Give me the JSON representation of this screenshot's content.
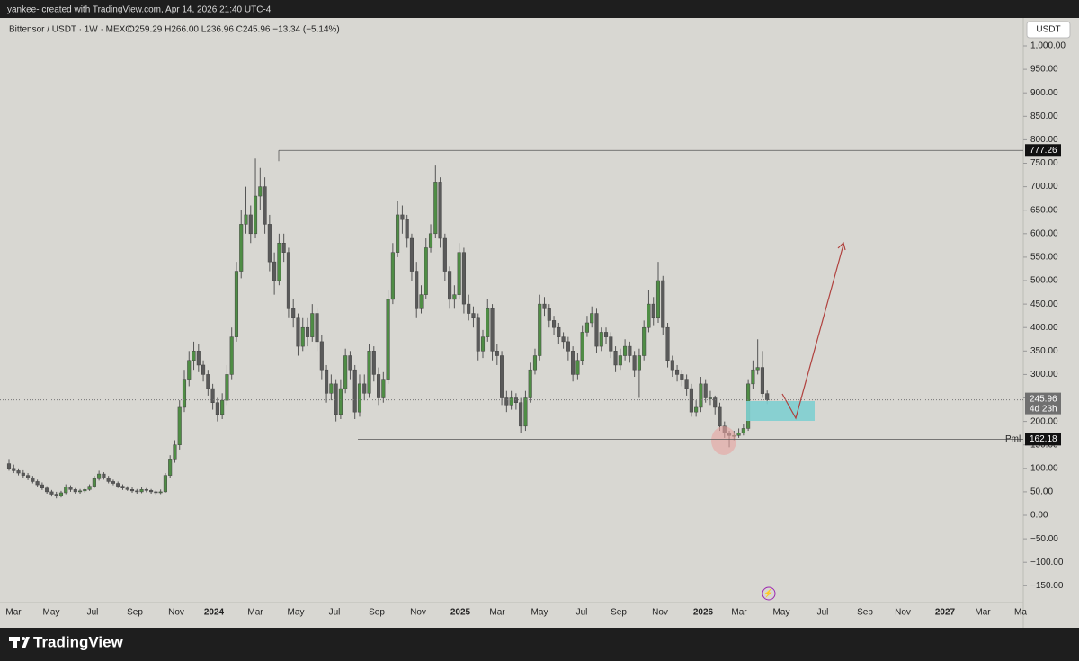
{
  "header": "yankee- created with TradingView.com, Apr 14, 2026 21:40 UTC-4",
  "footer": "TradingView",
  "chart_data": {
    "type": "candlestick",
    "title": "Bittensor / USDT · 1W · MEXC",
    "ohlc_label": "O259.29 H266.00 L236.96 C245.96 −13.34 (−5.14%)",
    "currency": "USDT",
    "up_color": "#4f8d45",
    "down_color": "#5a5a5a",
    "ylim": [
      -185.8,
      1059.4
    ],
    "yticks": [
      {
        "value": 1000,
        "label": "1,000.00"
      },
      {
        "value": 950,
        "label": "950.00"
      },
      {
        "value": 900,
        "label": "900.00"
      },
      {
        "value": 850,
        "label": "850.00"
      },
      {
        "value": 800,
        "label": "800.00"
      },
      {
        "value": 750,
        "label": "750.00"
      },
      {
        "value": 700,
        "label": "700.00"
      },
      {
        "value": 650,
        "label": "650.00"
      },
      {
        "value": 600,
        "label": "600.00"
      },
      {
        "value": 550,
        "label": "550.00"
      },
      {
        "value": 500,
        "label": "500.00"
      },
      {
        "value": 450,
        "label": "450.00"
      },
      {
        "value": 400,
        "label": "400.00"
      },
      {
        "value": 350,
        "label": "350.00"
      },
      {
        "value": 300,
        "label": "300.00"
      },
      {
        "value": 250,
        "label": "250.00"
      },
      {
        "value": 200,
        "label": "200.00"
      },
      {
        "value": 150,
        "label": "150.00"
      },
      {
        "value": 100,
        "label": "100.00"
      },
      {
        "value": 50,
        "label": "50.00"
      },
      {
        "value": 0,
        "label": "0.00"
      },
      {
        "value": -50,
        "label": "−50.00"
      },
      {
        "value": -100,
        "label": "−100.00"
      },
      {
        "value": -150,
        "label": "−150.00"
      }
    ],
    "xticks": [
      "Mar",
      "May",
      "Jul",
      "Sep",
      "Nov",
      "2024",
      "Mar",
      "May",
      "Jul",
      "Sep",
      "Nov",
      "2025",
      "Mar",
      "May",
      "Jul",
      "Sep",
      "Nov",
      "2026",
      "Mar",
      "May",
      "Jul",
      "Sep",
      "Nov",
      "2027",
      "Mar",
      "Ma"
    ],
    "levels": [
      {
        "value": 777.26,
        "label": "777.26"
      },
      {
        "value": 162.18,
        "label": "162.18",
        "name": "Pml"
      }
    ],
    "last_price": {
      "value": 245.96,
      "label": "245.96",
      "countdown": "4d 23h"
    },
    "candles": [
      [
        110,
        120,
        95,
        100
      ],
      [
        100,
        108,
        90,
        95
      ],
      [
        95,
        100,
        85,
        90
      ],
      [
        90,
        96,
        80,
        85
      ],
      [
        85,
        90,
        75,
        80
      ],
      [
        80,
        84,
        68,
        72
      ],
      [
        72,
        76,
        60,
        65
      ],
      [
        65,
        70,
        54,
        58
      ],
      [
        58,
        62,
        46,
        50
      ],
      [
        50,
        54,
        40,
        45
      ],
      [
        45,
        50,
        36,
        42
      ],
      [
        42,
        52,
        38,
        48
      ],
      [
        48,
        66,
        45,
        60
      ],
      [
        60,
        64,
        50,
        55
      ],
      [
        55,
        58,
        46,
        50
      ],
      [
        50,
        56,
        46,
        52
      ],
      [
        52,
        58,
        48,
        55
      ],
      [
        55,
        66,
        52,
        62
      ],
      [
        62,
        84,
        58,
        78
      ],
      [
        78,
        95,
        74,
        88
      ],
      [
        88,
        92,
        76,
        80
      ],
      [
        80,
        84,
        68,
        72
      ],
      [
        72,
        76,
        64,
        68
      ],
      [
        68,
        72,
        58,
        62
      ],
      [
        62,
        66,
        54,
        58
      ],
      [
        58,
        62,
        52,
        55
      ],
      [
        55,
        60,
        48,
        52
      ],
      [
        52,
        56,
        46,
        50
      ],
      [
        50,
        60,
        47,
        55
      ],
      [
        55,
        58,
        49,
        53
      ],
      [
        53,
        56,
        46,
        50
      ],
      [
        50,
        53,
        44,
        48
      ],
      [
        48,
        55,
        45,
        50
      ],
      [
        50,
        90,
        48,
        85
      ],
      [
        85,
        128,
        80,
        120
      ],
      [
        120,
        160,
        112,
        150
      ],
      [
        150,
        245,
        140,
        230
      ],
      [
        230,
        310,
        220,
        290
      ],
      [
        290,
        350,
        275,
        330
      ],
      [
        330,
        370,
        310,
        350
      ],
      [
        350,
        365,
        305,
        320
      ],
      [
        320,
        330,
        285,
        300
      ],
      [
        300,
        310,
        255,
        270
      ],
      [
        270,
        280,
        225,
        240
      ],
      [
        240,
        250,
        200,
        215
      ],
      [
        215,
        260,
        205,
        245
      ],
      [
        245,
        320,
        235,
        300
      ],
      [
        300,
        400,
        290,
        380
      ],
      [
        380,
        540,
        370,
        520
      ],
      [
        520,
        650,
        505,
        620
      ],
      [
        620,
        700,
        600,
        640
      ],
      [
        640,
        660,
        580,
        600
      ],
      [
        600,
        760,
        590,
        680
      ],
      [
        680,
        740,
        650,
        700
      ],
      [
        700,
        720,
        600,
        620
      ],
      [
        620,
        640,
        520,
        540
      ],
      [
        540,
        560,
        470,
        500
      ],
      [
        500,
        600,
        490,
        580
      ],
      [
        580,
        600,
        540,
        560
      ],
      [
        560,
        570,
        420,
        440
      ],
      [
        440,
        460,
        400,
        420
      ],
      [
        420,
        430,
        340,
        360
      ],
      [
        360,
        420,
        350,
        400
      ],
      [
        400,
        420,
        360,
        380
      ],
      [
        380,
        450,
        370,
        430
      ],
      [
        430,
        440,
        350,
        370
      ],
      [
        370,
        385,
        290,
        310
      ],
      [
        310,
        320,
        240,
        260
      ],
      [
        260,
        300,
        245,
        280
      ],
      [
        280,
        290,
        200,
        215
      ],
      [
        215,
        290,
        205,
        270
      ],
      [
        270,
        355,
        260,
        340
      ],
      [
        340,
        350,
        290,
        310
      ],
      [
        310,
        320,
        205,
        220
      ],
      [
        220,
        300,
        210,
        280
      ],
      [
        280,
        300,
        245,
        260
      ],
      [
        260,
        365,
        250,
        350
      ],
      [
        350,
        360,
        285,
        300
      ],
      [
        300,
        315,
        235,
        250
      ],
      [
        250,
        305,
        240,
        290
      ],
      [
        290,
        480,
        280,
        460
      ],
      [
        460,
        580,
        450,
        560
      ],
      [
        560,
        670,
        550,
        640
      ],
      [
        640,
        660,
        600,
        630
      ],
      [
        630,
        640,
        570,
        590
      ],
      [
        590,
        600,
        500,
        520
      ],
      [
        520,
        540,
        420,
        440
      ],
      [
        440,
        490,
        430,
        470
      ],
      [
        470,
        590,
        460,
        570
      ],
      [
        570,
        620,
        560,
        600
      ],
      [
        600,
        745,
        590,
        710
      ],
      [
        710,
        720,
        570,
        590
      ],
      [
        590,
        600,
        500,
        520
      ],
      [
        520,
        530,
        440,
        460
      ],
      [
        460,
        490,
        440,
        470
      ],
      [
        470,
        580,
        460,
        560
      ],
      [
        560,
        570,
        430,
        450
      ],
      [
        450,
        470,
        415,
        430
      ],
      [
        430,
        445,
        400,
        420
      ],
      [
        420,
        430,
        330,
        350
      ],
      [
        350,
        395,
        335,
        380
      ],
      [
        380,
        460,
        370,
        440
      ],
      [
        440,
        450,
        330,
        350
      ],
      [
        350,
        365,
        320,
        340
      ],
      [
        340,
        350,
        235,
        250
      ],
      [
        250,
        265,
        220,
        235
      ],
      [
        235,
        265,
        225,
        250
      ],
      [
        250,
        260,
        225,
        240
      ],
      [
        240,
        250,
        175,
        190
      ],
      [
        190,
        265,
        180,
        250
      ],
      [
        250,
        325,
        240,
        310
      ],
      [
        310,
        355,
        300,
        340
      ],
      [
        340,
        470,
        330,
        450
      ],
      [
        450,
        465,
        425,
        440
      ],
      [
        440,
        450,
        400,
        415
      ],
      [
        415,
        425,
        385,
        400
      ],
      [
        400,
        410,
        365,
        380
      ],
      [
        380,
        390,
        355,
        370
      ],
      [
        370,
        380,
        330,
        350
      ],
      [
        350,
        360,
        285,
        300
      ],
      [
        300,
        345,
        290,
        330
      ],
      [
        330,
        405,
        320,
        390
      ],
      [
        390,
        425,
        380,
        410
      ],
      [
        410,
        445,
        400,
        430
      ],
      [
        430,
        440,
        345,
        360
      ],
      [
        360,
        400,
        350,
        390
      ],
      [
        390,
        400,
        365,
        380
      ],
      [
        380,
        390,
        335,
        350
      ],
      [
        350,
        360,
        305,
        320
      ],
      [
        320,
        355,
        310,
        340
      ],
      [
        340,
        375,
        330,
        360
      ],
      [
        360,
        370,
        325,
        340
      ],
      [
        340,
        350,
        295,
        310
      ],
      [
        310,
        355,
        250,
        340
      ],
      [
        340,
        415,
        330,
        400
      ],
      [
        400,
        480,
        390,
        450
      ],
      [
        450,
        465,
        405,
        420
      ],
      [
        420,
        540,
        410,
        500
      ],
      [
        500,
        510,
        385,
        400
      ],
      [
        400,
        410,
        315,
        330
      ],
      [
        330,
        340,
        295,
        310
      ],
      [
        310,
        320,
        285,
        300
      ],
      [
        300,
        310,
        275,
        290
      ],
      [
        290,
        300,
        255,
        270
      ],
      [
        270,
        280,
        210,
        220
      ],
      [
        220,
        245,
        210,
        230
      ],
      [
        230,
        295,
        220,
        280
      ],
      [
        280,
        290,
        240,
        250
      ],
      [
        250,
        265,
        235,
        250
      ],
      [
        250,
        255,
        215,
        230
      ],
      [
        230,
        240,
        180,
        190
      ],
      [
        190,
        200,
        165,
        175
      ],
      [
        175,
        180,
        145,
        170
      ],
      [
        170,
        180,
        160,
        170
      ],
      [
        170,
        185,
        165,
        175
      ],
      [
        175,
        195,
        170,
        185
      ],
      [
        185,
        290,
        180,
        280
      ],
      [
        280,
        330,
        270,
        310
      ],
      [
        310,
        375,
        300,
        315
      ],
      [
        315,
        350,
        250,
        259.29
      ],
      [
        259.29,
        266,
        236.96,
        245.96
      ]
    ]
  }
}
